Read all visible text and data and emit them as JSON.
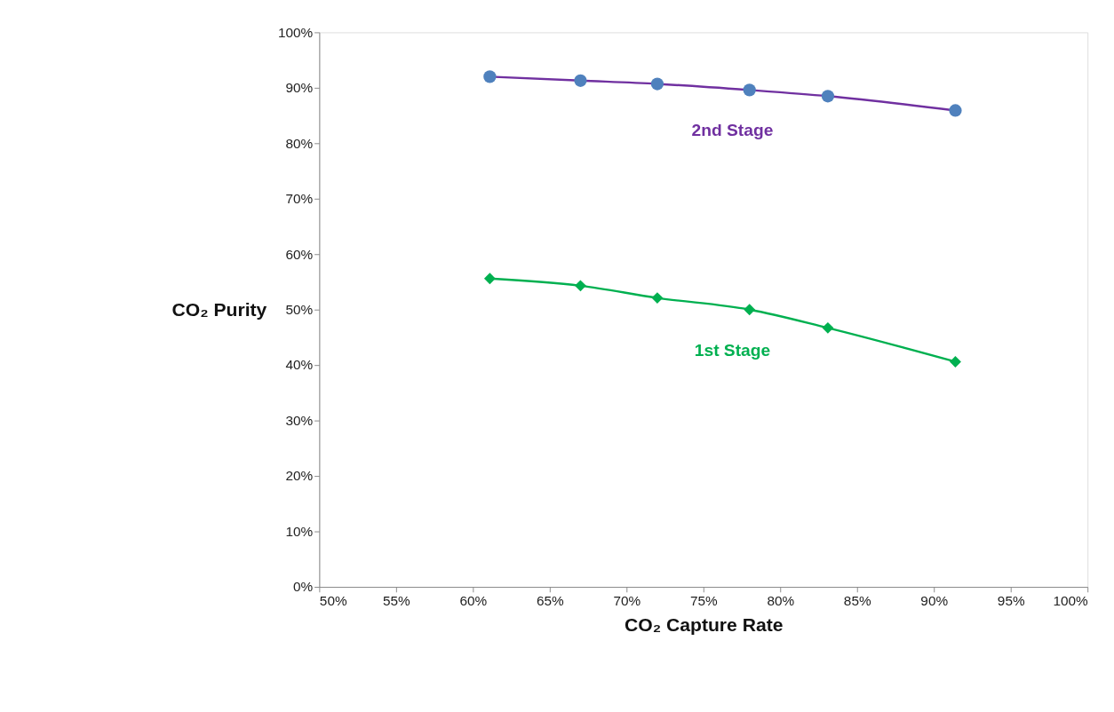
{
  "chart_data": {
    "type": "line",
    "xlabel": "CO₂ Capture Rate",
    "ylabel": "CO₂ Purity",
    "xlim": [
      50,
      100
    ],
    "ylim": [
      0,
      100
    ],
    "xticks": [
      {
        "value": 50,
        "label": "50%"
      },
      {
        "value": 55,
        "label": "55%"
      },
      {
        "value": 60,
        "label": "60%"
      },
      {
        "value": 65,
        "label": "65%"
      },
      {
        "value": 70,
        "label": "70%"
      },
      {
        "value": 75,
        "label": "75%"
      },
      {
        "value": 80,
        "label": "80%"
      },
      {
        "value": 85,
        "label": "85%"
      },
      {
        "value": 90,
        "label": "90%"
      },
      {
        "value": 95,
        "label": "95%"
      },
      {
        "value": 100,
        "label": "100%"
      }
    ],
    "yticks": [
      {
        "value": 0,
        "label": "0%"
      },
      {
        "value": 10,
        "label": "10%"
      },
      {
        "value": 20,
        "label": "20%"
      },
      {
        "value": 30,
        "label": "30%"
      },
      {
        "value": 40,
        "label": "40%"
      },
      {
        "value": 50,
        "label": "50%"
      },
      {
        "value": 60,
        "label": "60%"
      },
      {
        "value": 70,
        "label": "70%"
      },
      {
        "value": 80,
        "label": "80%"
      },
      {
        "value": 90,
        "label": "90%"
      },
      {
        "value": 100,
        "label": "100%"
      }
    ],
    "grid": false,
    "series": [
      {
        "name": "2nd Stage",
        "color": "#7030a0",
        "marker": "none",
        "x": [
          61.1,
          67.0,
          72.0,
          78.0,
          83.1,
          91.4
        ],
        "values": [
          92.0,
          91.3,
          90.7,
          89.6,
          88.5,
          85.9
        ]
      },
      {
        "type": "scatter",
        "color": "#4f81bd",
        "marker": "circle",
        "x": [
          61.1,
          67.0,
          72.0,
          78.0,
          83.1,
          91.4
        ],
        "values": [
          92.0,
          91.3,
          90.7,
          89.6,
          88.5,
          85.9
        ]
      },
      {
        "name": "1st Stage",
        "color": "#00b050",
        "marker": "none",
        "x": [
          61.1,
          67.0,
          72.0,
          78.0,
          83.1,
          91.4
        ],
        "values": [
          55.6,
          54.3,
          52.1,
          50.0,
          46.7,
          40.6
        ]
      },
      {
        "type": "scatter",
        "color": "#00b050",
        "marker": "diamond",
        "x": [
          61.1,
          67.0,
          72.0,
          78.0,
          83.1,
          91.4
        ],
        "values": [
          55.6,
          54.3,
          52.1,
          50.0,
          46.7,
          40.6
        ]
      }
    ]
  }
}
